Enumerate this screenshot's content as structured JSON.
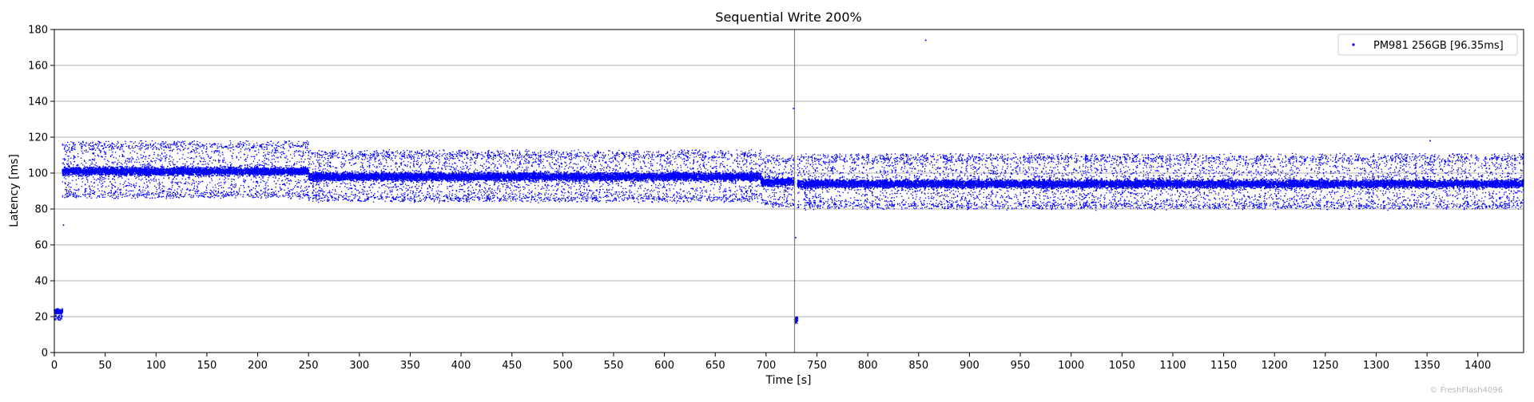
{
  "chart_data": {
    "type": "scatter",
    "title": "Sequential Write 200%",
    "xlabel": "Time [s]",
    "ylabel": "Latency [ms]",
    "xlim": [
      0,
      1445
    ],
    "ylim": [
      0,
      180
    ],
    "x_ticks": [
      0,
      50,
      100,
      150,
      200,
      250,
      300,
      350,
      400,
      450,
      500,
      550,
      600,
      650,
      700,
      750,
      800,
      850,
      900,
      950,
      1000,
      1050,
      1100,
      1150,
      1200,
      1250,
      1300,
      1350,
      1400
    ],
    "y_ticks": [
      0,
      20,
      40,
      60,
      80,
      100,
      120,
      140,
      160,
      180
    ],
    "grid": "horizontal",
    "legend_position": "top-right",
    "vertical_marker_x": 728,
    "series": [
      {
        "name": "PM981 256GB [96.35ms]",
        "color": "#0000ff",
        "marker": "dot",
        "segments": [
          {
            "x_start": 0,
            "x_end": 8,
            "core": 23,
            "spread_low": 18,
            "spread_high": 24
          },
          {
            "x_start": 8,
            "x_end": 250,
            "core": 101,
            "spread_low": 86,
            "spread_high": 118
          },
          {
            "x_start": 250,
            "x_end": 695,
            "core": 98,
            "spread_low": 84,
            "spread_high": 113
          },
          {
            "x_start": 695,
            "x_end": 728,
            "core": 95,
            "spread_low": 81,
            "spread_high": 110
          },
          {
            "x_start": 728,
            "x_end": 731,
            "core": 18,
            "spread_low": 17,
            "spread_high": 20
          },
          {
            "x_start": 731,
            "x_end": 1445,
            "core": 94,
            "spread_low": 80,
            "spread_high": 111
          }
        ],
        "outliers": [
          {
            "x": 9,
            "y": 71
          },
          {
            "x": 727,
            "y": 136
          },
          {
            "x": 729,
            "y": 64
          },
          {
            "x": 857,
            "y": 174
          },
          {
            "x": 1353,
            "y": 118
          }
        ]
      }
    ]
  },
  "watermark": "© FreshFlash4096"
}
